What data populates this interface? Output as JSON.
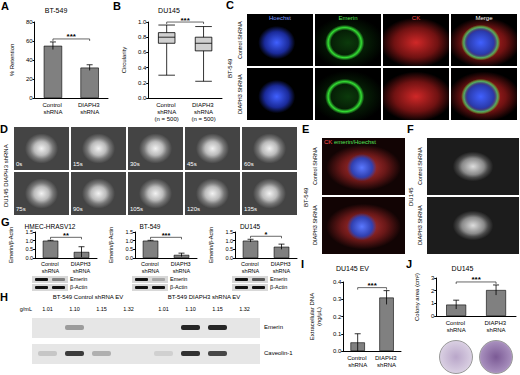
{
  "chart_data": [
    {
      "panel": "A",
      "type": "bar",
      "title": "BT-549",
      "y_label": "% Retention",
      "categories": [
        "Control shRNA",
        "DIAPH3 shRNA"
      ],
      "values": [
        55,
        32
      ],
      "errors": [
        4,
        3
      ],
      "color": "#808080",
      "ylim": [
        0,
        80
      ],
      "yticks": [
        0,
        20,
        40,
        60,
        80
      ],
      "annotations": [
        "***"
      ]
    },
    {
      "panel": "B",
      "type": "boxplot",
      "title": "DU145",
      "y_label": "Circularity",
      "categories": [
        "Control shRNA\n(n = 500)",
        "DIAPH3 shRNA\n(n = 500)"
      ],
      "values": [
        [
          0.3,
          0.72,
          0.8,
          0.86,
          0.96
        ],
        [
          0.22,
          0.62,
          0.72,
          0.8,
          0.94
        ]
      ],
      "color": "#d0d0d0",
      "ylim": [
        0,
        1
      ],
      "yticks": [
        {
          "value": 0,
          "label": "0.0"
        },
        0.2,
        0.4,
        0.6,
        0.8,
        {
          "value": 1,
          "label": "1.0"
        }
      ],
      "annotations": [
        "***"
      ]
    },
    {
      "panel": "G",
      "type": "bar",
      "title": "HMEC-HRASV12",
      "y_label": "Emerin/β-Actin",
      "categories": [
        "Control shRNA",
        "DIAPH3 shRNA"
      ],
      "values": [
        1,
        0.35
      ],
      "errors": [
        0.02,
        0.3
      ],
      "color": "#808080",
      "ylim": [
        0,
        1.5
      ],
      "yticks": [
        {
          "value": 0,
          "label": "0.0"
        },
        0.5,
        {
          "value": 1,
          "label": "1.0"
        },
        1.5
      ],
      "annotations": [
        "**"
      ]
    },
    {
      "type": "bar",
      "title": "BT-549",
      "y_label": "Emerin/β-Actin",
      "categories": [
        "Control shRNA",
        "DIAPH3 shRNA"
      ],
      "values": [
        1,
        0.18
      ],
      "errors": [
        0.02,
        0.1
      ],
      "color": "#808080",
      "ylim": [
        0,
        1.5
      ],
      "yticks": [
        {
          "value": 0,
          "label": "0.0"
        },
        0.5,
        {
          "value": 1,
          "label": "1.0"
        },
        1.5
      ],
      "annotations": [
        "***"
      ]
    },
    {
      "type": "bar",
      "title": "DU145",
      "y_label": "Emerin/β-Actin",
      "categories": [
        "Control shRNA",
        "DIAPH3 shRNA"
      ],
      "values": [
        1,
        0.65
      ],
      "errors": [
        0.08,
        0.15
      ],
      "color": "#808080",
      "ylim": [
        0,
        1.5
      ],
      "yticks": [
        {
          "value": 0,
          "label": "0.0"
        },
        0.5,
        {
          "value": 1,
          "label": "1.0"
        },
        1.5
      ],
      "annotations": [
        "*"
      ]
    },
    {
      "panel": "I",
      "type": "bar",
      "title": "DU145 EV",
      "y_label": "Extracellular DNA\n(ng/μL)",
      "categories": [
        "Control shRNA",
        "DIAPH3 shRNA"
      ],
      "values": [
        0.05,
        0.31
      ],
      "errors": [
        0.05,
        0.04
      ],
      "color": "#808080",
      "ylim": [
        0,
        0.4
      ],
      "yticks": [
        {
          "value": 0,
          "label": "0.0"
        },
        0.1,
        0.2,
        0.3,
        0.4
      ],
      "annotations": [
        "***"
      ]
    },
    {
      "panel": "J",
      "type": "bar",
      "title": "DU145",
      "y_label": "Colony area (cm²)",
      "categories": [
        "Control shRNA",
        "DIAPH3 shRNA"
      ],
      "values": [
        0.9,
        2.05
      ],
      "errors": [
        0.35,
        0.4
      ],
      "color": "#808080",
      "ylim": [
        0,
        3
      ],
      "yticks": [
        0,
        1,
        2,
        3
      ],
      "annotations": [
        "***"
      ]
    }
  ],
  "images": {
    "C": {
      "panel": "C",
      "cell_line": "BT-549",
      "rows": [
        "Control ShRNA",
        "DIAPH3 ShRNA"
      ],
      "columns": [
        "Hoechst",
        "Emerin",
        "CK",
        "Merge"
      ]
    },
    "D": {
      "panel": "D",
      "label": "DU145 DIAPH3 shRNA",
      "times": [
        "0s",
        "15s",
        "30s",
        "45s",
        "60s",
        "75s",
        "90s",
        "105s",
        "120s",
        "135s"
      ]
    },
    "E": {
      "panel": "E",
      "cell_line": "BT-549",
      "rows": [
        "Control ShRNA",
        "DIAPH3 ShRNA"
      ],
      "stain_labels": [
        "CK",
        "emerin/Hoechst"
      ]
    },
    "F": {
      "panel": "F",
      "cell_line": "DU145",
      "rows": [
        "Control ShRNA",
        "DIAPH3 ShRNA"
      ]
    },
    "H": {
      "panel": "H",
      "groups": [
        "BT-549 Control shRNA EV",
        "BT-549 DIAPH3 shRNA EV"
      ],
      "densities": [
        "1.01",
        "1.10",
        "1.15",
        "1.32"
      ],
      "density_unit": "g/mL",
      "rows": [
        "Emerin",
        "Caveolin-1"
      ]
    }
  },
  "G_blot_rows": [
    "Emerin",
    "β-Actin"
  ]
}
